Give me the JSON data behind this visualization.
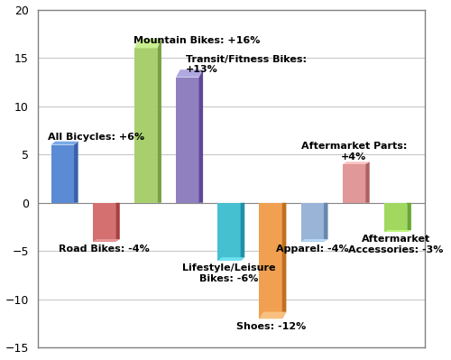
{
  "categories": [
    "All Bicycles",
    "Road Bikes",
    "Mountain Bikes",
    "Transit/Fitness Bikes",
    "Lifestyle/Leisure Bikes",
    "Shoes",
    "Apparel",
    "Aftermarket Parts",
    "Aftermarket Accessories"
  ],
  "values": [
    6,
    -4,
    16,
    13,
    -6,
    -12,
    -4,
    4,
    -3
  ],
  "labels": [
    "All Bicycles: +6%",
    "Road Bikes: -4%",
    "Mountain Bikes: +16%",
    "Transit/Fitness Bikes:\n+13%",
    "Lifestyle/Leisure\nBikes: -6%",
    "Shoes: -12%",
    "Apparel: -4%",
    "Aftermarket Parts:\n+4%",
    "Aftermarket\nAccessories: -3%"
  ],
  "label_ha": [
    "left",
    "center",
    "center",
    "left",
    "center",
    "center",
    "center",
    "center",
    "center"
  ],
  "label_above": [
    true,
    false,
    true,
    true,
    false,
    false,
    false,
    true,
    false
  ],
  "bar_face_colors": [
    "#5B8BD4",
    "#D47070",
    "#A8CF6E",
    "#9080C0",
    "#45C0D0",
    "#F0A050",
    "#9AB4D8",
    "#E09898",
    "#A0D860"
  ],
  "bar_side_colors": [
    "#3A60A8",
    "#A84040",
    "#78A040",
    "#604898",
    "#2090A8",
    "#C07020",
    "#6888B0",
    "#B06060",
    "#68A830"
  ],
  "bar_top_colors": [
    "#7AAAE8",
    "#E89898",
    "#C8EF8E",
    "#B0A8E0",
    "#70E0F0",
    "#F8C080",
    "#BADAF8",
    "#F8C0C0",
    "#C0F880"
  ],
  "ylim": [
    -15,
    20
  ],
  "yticks": [
    -15,
    -10,
    -5,
    0,
    5,
    10,
    15,
    20
  ],
  "background_color": "#FFFFFF",
  "grid_color": "#C8C8C8",
  "label_fontsize": 8,
  "bar_width": 0.55,
  "depth": 0.12,
  "border_color": "#808080"
}
